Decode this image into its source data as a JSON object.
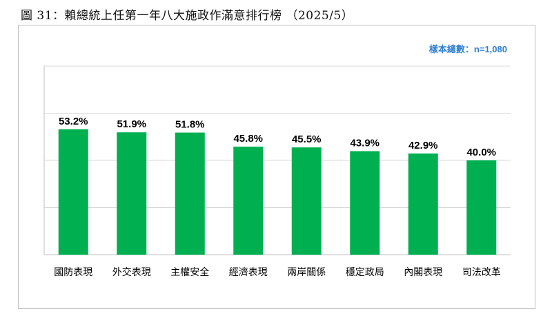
{
  "caption": "圖 31：賴總統上任第一年八大施政作滿意排行榜 （2025/5）",
  "sample_note": "樣本總數：n=1,080",
  "colors": {
    "bar": "#00b050",
    "sample_note": "#2f7fd1"
  },
  "chart_data": {
    "type": "bar",
    "categories": [
      "國防表現",
      "外交表現",
      "主權安全",
      "經濟表現",
      "兩岸關係",
      "穩定政局",
      "內閣表現",
      "司法改革"
    ],
    "values": [
      53.2,
      51.9,
      51.8,
      45.8,
      45.5,
      43.9,
      42.9,
      40.0
    ],
    "value_labels": [
      "53.2%",
      "51.9%",
      "51.8%",
      "45.8%",
      "45.5%",
      "43.9%",
      "42.9%",
      "40.0%"
    ],
    "ylim": [
      0,
      80
    ],
    "grid": true,
    "legend": false
  }
}
